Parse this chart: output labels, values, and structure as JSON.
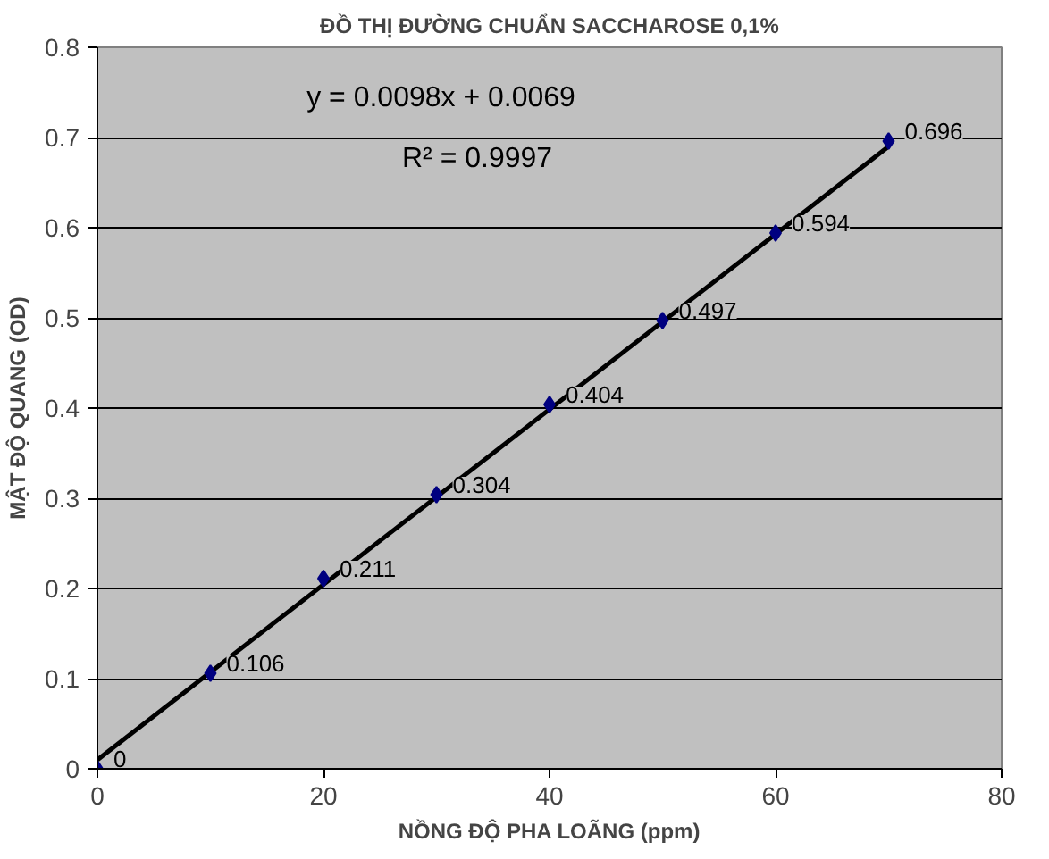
{
  "chart_data": {
    "type": "scatter",
    "title": "ĐỒ THỊ ĐƯỜNG CHUẨN SACCHAROSE 0,1%",
    "xlabel": "NỒNG ĐỘ PHA LOÃNG (ppm)",
    "ylabel": "MẬT ĐỘ QUANG (OD)",
    "annotations": [
      "y = 0.0098x + 0.0069",
      "R² = 0.9997"
    ],
    "series": [
      {
        "type": "line",
        "color": "#000000",
        "x": [
          0,
          70
        ],
        "values": [
          0.01,
          0.69
        ],
        "marker": "none"
      },
      {
        "color": "#000080",
        "x": [
          0,
          10,
          20,
          30,
          40,
          50,
          60,
          70
        ],
        "values": [
          0,
          0.106,
          0.211,
          0.304,
          0.404,
          0.497,
          0.594,
          0.696
        ],
        "marker": "diamond",
        "value_labels": [
          "0",
          "0.106",
          "0.211",
          "0.304",
          "0.404",
          "0.497",
          "0.594",
          "0.696"
        ]
      }
    ],
    "xlim": [
      0,
      80
    ],
    "ylim": [
      0,
      0.8
    ],
    "xticks": [
      0,
      20,
      40,
      60,
      80
    ],
    "yticks": [
      0,
      0.1,
      0.2,
      0.3,
      0.4,
      0.5,
      0.6,
      0.7,
      0.8
    ],
    "grid": "y"
  }
}
